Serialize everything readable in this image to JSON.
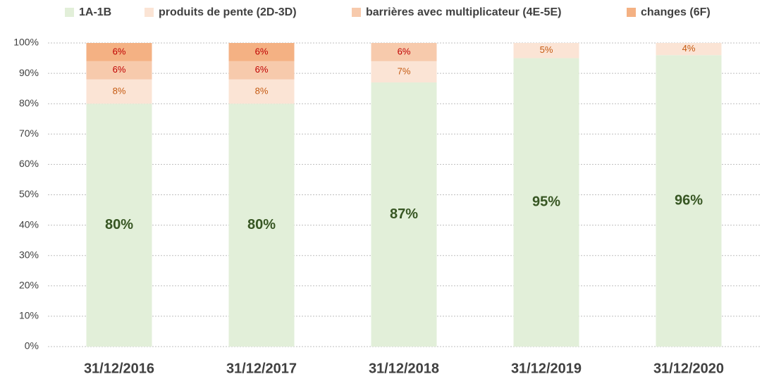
{
  "chart_data": {
    "type": "stacked_bar",
    "categories": [
      "31/12/2016",
      "31/12/2017",
      "31/12/2018",
      "31/12/2019",
      "31/12/2020"
    ],
    "series": [
      {
        "name": "1A-1B",
        "color": "#e2efd9",
        "label_color": "#375623",
        "values": [
          80,
          80,
          87,
          95,
          96
        ],
        "value_labels": [
          "80%",
          "80%",
          "87%",
          "95%",
          "96%"
        ]
      },
      {
        "name": "produits de pente (2D-3D)",
        "color": "#fbe4d5",
        "label_color": "#c55a11",
        "values": [
          8,
          8,
          7,
          5,
          4
        ],
        "value_labels": [
          "8%",
          "8%",
          "7%",
          "5%",
          "4%"
        ]
      },
      {
        "name": "barrières avec multiplicateur (4E-5E)",
        "color": "#f7caac",
        "label_color": "#c00000",
        "values": [
          6,
          6,
          6,
          null,
          null
        ],
        "value_labels": [
          "6%",
          "6%",
          "6%",
          null,
          null
        ]
      },
      {
        "name": "changes (6F)",
        "color": "#f4b183",
        "label_color": "#c00000",
        "values": [
          6,
          6,
          null,
          null,
          null
        ],
        "value_labels": [
          "6%",
          "6%",
          null,
          null,
          null
        ]
      }
    ],
    "ylim": [
      0,
      100
    ],
    "yticks": [
      {
        "value": 0,
        "label": "0%"
      },
      {
        "value": 10,
        "label": "10%"
      },
      {
        "value": 20,
        "label": "20%"
      },
      {
        "value": 30,
        "label": "30%"
      },
      {
        "value": 40,
        "label": "40%"
      },
      {
        "value": 50,
        "label": "50%"
      },
      {
        "value": 60,
        "label": "60%"
      },
      {
        "value": 70,
        "label": "70%"
      },
      {
        "value": 80,
        "label": "80%"
      },
      {
        "value": 90,
        "label": "90%"
      },
      {
        "value": 100,
        "label": "100%"
      }
    ],
    "grid": true,
    "legend": "top"
  }
}
